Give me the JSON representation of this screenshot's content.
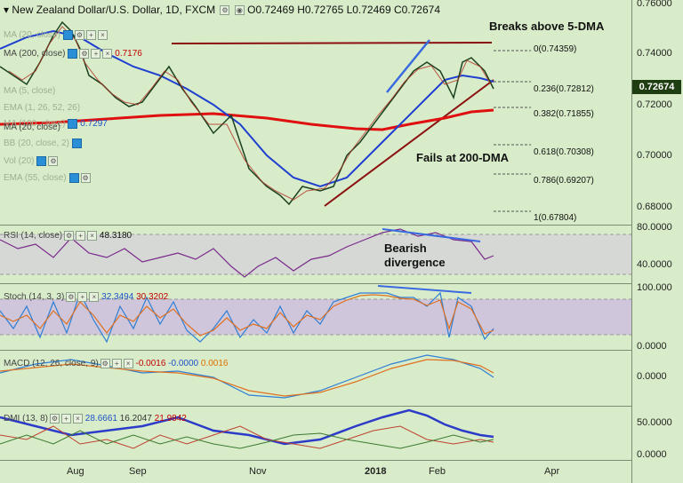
{
  "title": {
    "pair": "New Zealand Dollar/U.S. Dollar, 1D, FXCM",
    "ohlc": "O0.72469 H0.72765 L0.72469 C0.72674"
  },
  "price_badge": "0.72674",
  "main_axis": [
    "0.76000",
    "0.74000",
    "0.72000",
    "0.70000",
    "0.68000"
  ],
  "x_axis": [
    "Aug",
    "Sep",
    "Nov",
    "2018",
    "Feb",
    "Apr"
  ],
  "indicators_main": [
    {
      "label": "MA (20, close)",
      "value": "",
      "faint": true
    },
    {
      "label": "MA (200, close)",
      "value": "0.7176",
      "faint": false
    },
    {
      "label": "MA (5, close)",
      "value": "",
      "faint": true
    },
    {
      "label": "EMA (1, 26, 52, 26)",
      "value": "",
      "faint": true
    },
    {
      "label": "MA (100, close)",
      "value": "0.7297",
      "faint": false
    },
    {
      "label": "MA (20, close)",
      "value": "",
      "faint": false
    },
    {
      "label": "BB (20, close, 2)",
      "value": "",
      "faint": true
    },
    {
      "label": "Vol (20)",
      "value": "",
      "faint": true
    },
    {
      "label": "EMA (55, close)",
      "value": "",
      "faint": true
    }
  ],
  "annotations": {
    "breaks": "Breaks above 5-DMA",
    "fails": "Fails at 200-DMA",
    "bearish": "Bearish\ndivergence"
  },
  "fib_levels": [
    "0(0.74359)",
    "0.236(0.72812)",
    "0.382(0.71855)",
    "0.618(0.70308)",
    "0.786(0.69207)",
    "1(0.67804)"
  ],
  "rsi": {
    "label": "RSI (14, close)",
    "value": "48.3180",
    "axis": [
      "80.0000",
      "40.0000"
    ]
  },
  "stoch": {
    "label": "Stoch (14, 3, 3)",
    "k": "32.3494",
    "d": "30.3202",
    "axis": [
      "100.000",
      "0.0000"
    ]
  },
  "macd": {
    "label": "MACD (12, 26, close, 9)",
    "v1": "-0.0016",
    "v2": "-0.0000",
    "v3": "0.0016",
    "axis": [
      "0.0000"
    ]
  },
  "dmi": {
    "label": "DMI (13, 8)",
    "v1": "28.6661",
    "v2": "16.2047",
    "v3": "21.9842",
    "axis": [
      "50.0000",
      "0.0000"
    ]
  },
  "colors": {
    "background": "#d8ecc9",
    "ma200": "#e01010",
    "ma100": "#1f3fd0",
    "rsi": "#7a2a8a",
    "trend": "#8b1010",
    "fib": "#555555"
  }
}
